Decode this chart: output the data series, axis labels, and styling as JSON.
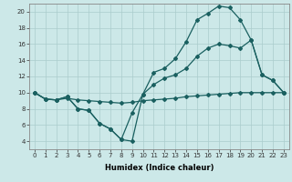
{
  "title": "",
  "xlabel": "Humidex (Indice chaleur)",
  "bg_color": "#cce8e8",
  "grid_color": "#aacccc",
  "line_color": "#1a6060",
  "xlim": [
    -0.5,
    23.5
  ],
  "ylim": [
    3.0,
    21.0
  ],
  "yticks": [
    4,
    6,
    8,
    10,
    12,
    14,
    16,
    18,
    20
  ],
  "xticks": [
    0,
    1,
    2,
    3,
    4,
    5,
    6,
    7,
    8,
    9,
    10,
    11,
    12,
    13,
    14,
    15,
    16,
    17,
    18,
    19,
    20,
    21,
    22,
    23
  ],
  "line1_x": [
    0,
    1,
    2,
    3,
    4,
    5,
    6,
    7,
    8,
    9,
    10,
    11,
    12,
    13,
    14,
    15,
    16,
    17,
    18,
    19,
    20,
    21,
    22,
    23
  ],
  "line1_y": [
    10.0,
    9.2,
    9.1,
    9.5,
    8.0,
    7.8,
    6.2,
    5.5,
    4.2,
    4.0,
    9.8,
    12.5,
    13.0,
    14.2,
    16.3,
    19.0,
    19.8,
    20.7,
    20.5,
    19.0,
    16.5,
    12.2,
    11.5,
    10.0
  ],
  "line2_x": [
    0,
    1,
    2,
    3,
    4,
    5,
    6,
    7,
    8,
    9,
    10,
    11,
    12,
    13,
    14,
    15,
    16,
    17,
    18,
    19,
    20,
    21,
    22,
    23
  ],
  "line2_y": [
    10.0,
    9.2,
    9.1,
    9.5,
    8.0,
    7.8,
    6.2,
    5.5,
    4.2,
    7.5,
    9.8,
    11.0,
    11.8,
    12.2,
    13.0,
    14.5,
    15.5,
    16.0,
    15.8,
    15.5,
    16.5,
    12.2,
    11.5,
    10.0
  ],
  "line3_x": [
    0,
    1,
    2,
    3,
    4,
    5,
    6,
    7,
    8,
    9,
    10,
    11,
    12,
    13,
    14,
    15,
    16,
    17,
    18,
    19,
    20,
    21,
    22,
    23
  ],
  "line3_y": [
    10.0,
    9.2,
    9.1,
    9.3,
    9.1,
    9.0,
    8.9,
    8.8,
    8.7,
    8.8,
    9.0,
    9.1,
    9.2,
    9.3,
    9.5,
    9.6,
    9.7,
    9.8,
    9.9,
    10.0,
    10.0,
    10.0,
    10.0,
    10.0
  ],
  "tick_fontsize": 5,
  "xlabel_fontsize": 6,
  "xlabel_fontweight": "bold"
}
